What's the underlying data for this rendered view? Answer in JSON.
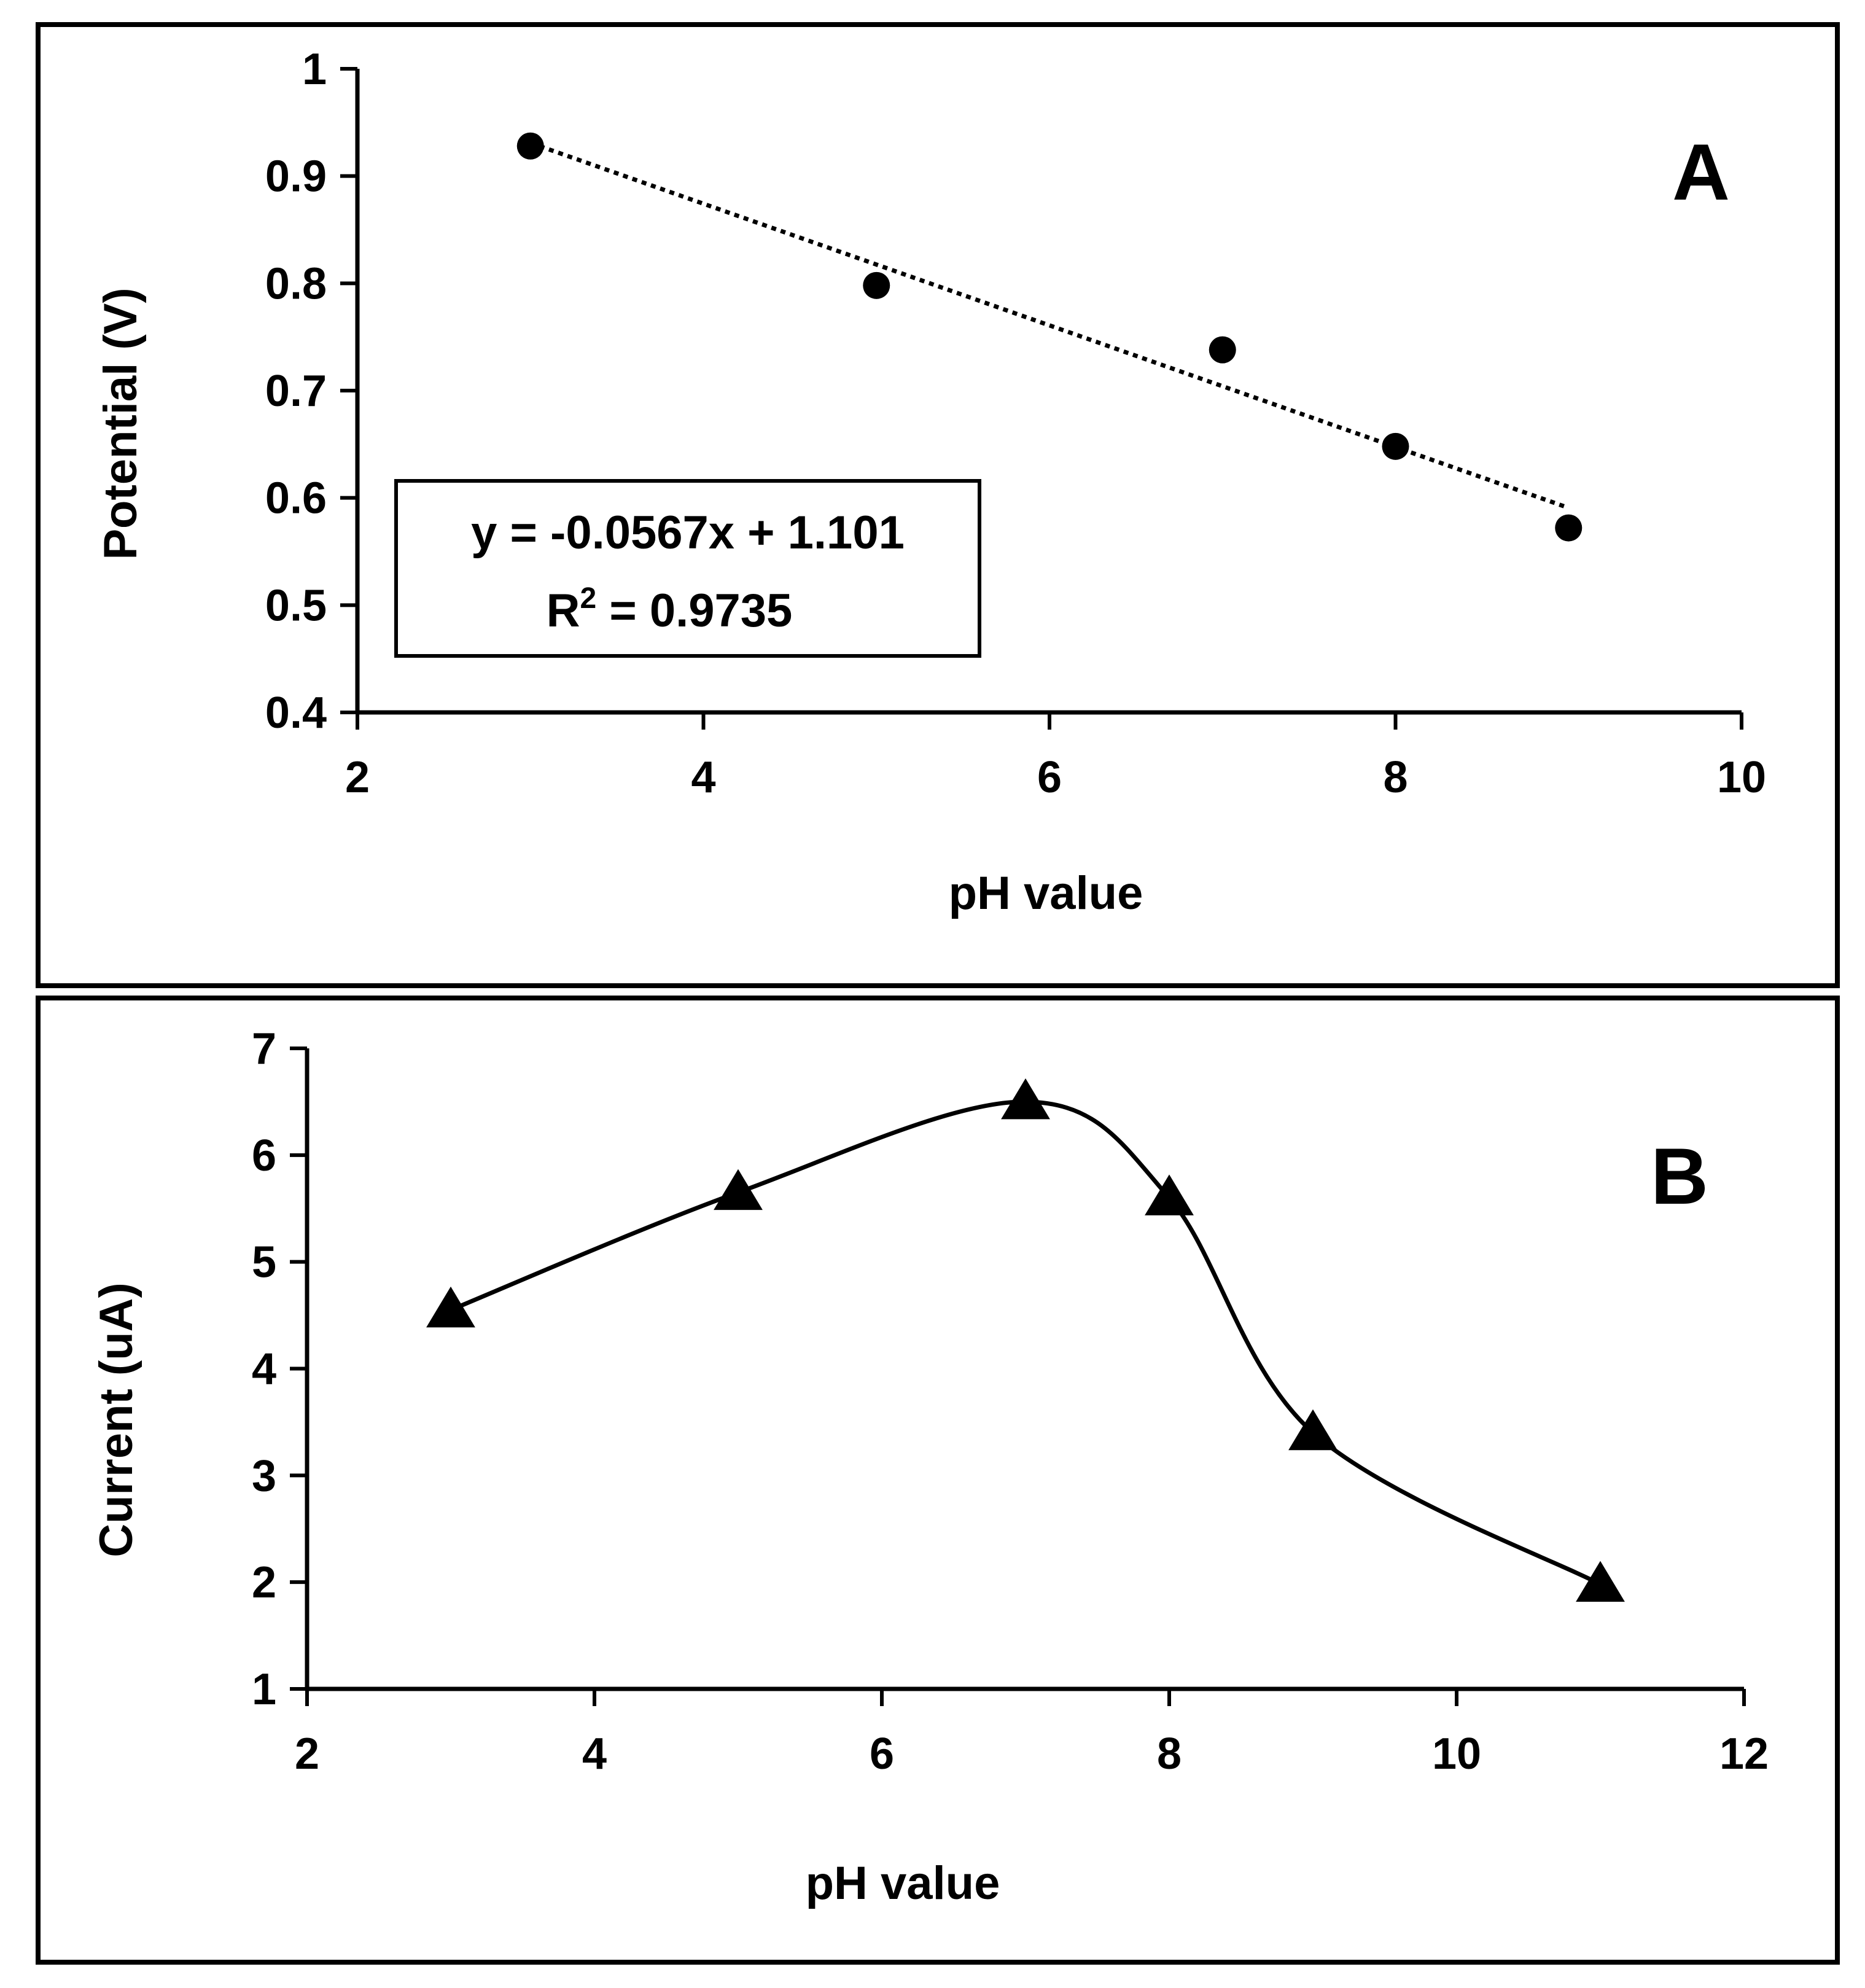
{
  "chart_data": [
    {
      "panel": "A",
      "type": "scatter",
      "xlabel": "pH value",
      "ylabel": "Potential (V)",
      "xlim": [
        2,
        10
      ],
      "ylim": [
        0.4,
        1
      ],
      "xticks": [
        2,
        4,
        6,
        8,
        10
      ],
      "yticks": [
        0.4,
        0.5,
        0.6,
        0.7,
        0.8,
        0.9,
        1
      ],
      "ytick_labels": [
        "0.4",
        "0.5",
        "0.6",
        "0.7",
        "0.8",
        "0.9",
        "1"
      ],
      "marker": "circle",
      "series": [
        {
          "name": "Potential",
          "x": [
            3,
            5,
            7,
            8,
            9
          ],
          "y": [
            0.928,
            0.798,
            0.738,
            0.648,
            0.572
          ]
        }
      ],
      "trendline": {
        "type": "linear",
        "slope": -0.0567,
        "intercept": 1.101,
        "x_range": [
          3,
          9
        ],
        "style": "dotted"
      },
      "equation": "y = -0.0567x + 1.101",
      "r2_label": "R",
      "r2_sup": "2",
      "r2_value": " = 0.9735"
    },
    {
      "panel": "B",
      "type": "line",
      "xlabel": "pH value",
      "ylabel": "Current (uA)",
      "xlim": [
        2,
        12
      ],
      "ylim": [
        1,
        7
      ],
      "xticks": [
        2,
        4,
        6,
        8,
        10,
        12
      ],
      "yticks": [
        1,
        2,
        3,
        4,
        5,
        6,
        7
      ],
      "marker": "triangle",
      "smooth": true,
      "series": [
        {
          "name": "Current",
          "x": [
            3,
            5,
            7,
            8,
            9,
            11
          ],
          "y": [
            4.55,
            5.65,
            6.5,
            5.6,
            3.4,
            1.98
          ]
        }
      ]
    }
  ]
}
